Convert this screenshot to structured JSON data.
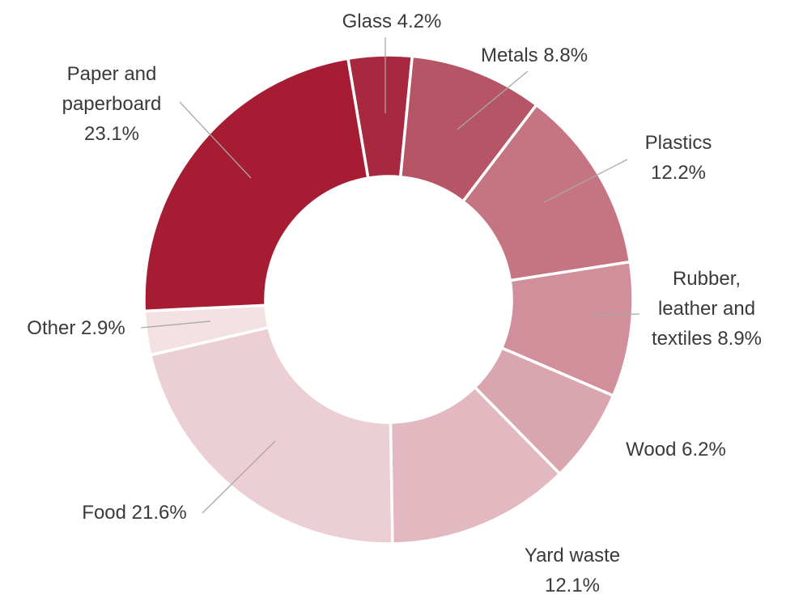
{
  "chart_data": {
    "type": "pie",
    "variant": "donut",
    "unit": "%",
    "slices": [
      {
        "label": "Glass",
        "value": 4.2,
        "label_lines": [
          "Glass 4.2%"
        ],
        "color": "#a8283f"
      },
      {
        "label": "Metals",
        "value": 8.8,
        "label_lines": [
          "Metals 8.8%"
        ],
        "color": "#b55566"
      },
      {
        "label": "Plastics",
        "value": 12.2,
        "label_lines": [
          "Plastics",
          "12.2%"
        ],
        "color": "#c57482"
      },
      {
        "label": "Rubber, leather and textiles",
        "value": 8.9,
        "label_lines": [
          "Rubber,",
          "leather and",
          "textiles 8.9%"
        ],
        "color": "#d08f9b"
      },
      {
        "label": "Wood",
        "value": 6.2,
        "label_lines": [
          "Wood 6.2%"
        ],
        "color": "#d9a5ae"
      },
      {
        "label": "Yard waste",
        "value": 12.1,
        "label_lines": [
          "Yard waste",
          "12.1%"
        ],
        "color": "#e2b9c0"
      },
      {
        "label": "Food",
        "value": 21.6,
        "label_lines": [
          "Food 21.6%"
        ],
        "color": "#ebcfd4"
      },
      {
        "label": "Other",
        "value": 2.9,
        "label_lines": [
          "Other 2.9%"
        ],
        "color": "#f3e1e4"
      },
      {
        "label": "Paper and paperboard",
        "value": 23.1,
        "label_lines": [
          "Paper and",
          "paperboard",
          "23.1%"
        ],
        "color": "#a51c33"
      }
    ]
  }
}
